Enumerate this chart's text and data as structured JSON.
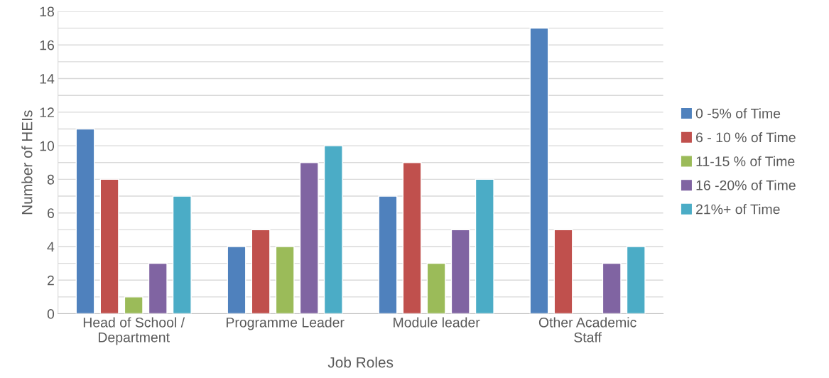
{
  "chart_data": {
    "type": "bar",
    "categories": [
      "Head of School /\nDepartment",
      "Programme Leader",
      "Module leader",
      "Other Academic\nStaff"
    ],
    "series": [
      {
        "name": "0 -5% of Time",
        "color": "#4f81bd",
        "values": [
          11,
          4,
          7,
          17
        ]
      },
      {
        "name": "6 - 10 % of Time",
        "color": "#c0504d",
        "values": [
          8,
          5,
          9,
          5
        ]
      },
      {
        "name": "11-15 % of Time",
        "color": "#9bbb59",
        "values": [
          1,
          4,
          3,
          null
        ]
      },
      {
        "name": "16 -20% of Time",
        "color": "#8064a2",
        "values": [
          3,
          9,
          5,
          3
        ]
      },
      {
        "name": "21%+ of Time",
        "color": "#4bacc6",
        "values": [
          7,
          10,
          8,
          4
        ]
      }
    ],
    "xlabel": "Job Roles",
    "ylabel": "Number of HEIs",
    "ylim": [
      0,
      18
    ],
    "yticks": [
      0,
      {
        "value": 1,
        "label": null
      },
      2,
      {
        "value": 3,
        "label": null
      },
      4,
      {
        "value": 5,
        "label": null
      },
      6,
      {
        "value": 7,
        "label": null
      },
      8,
      {
        "value": 9,
        "label": null
      },
      10,
      {
        "value": 11,
        "label": null
      },
      12,
      {
        "value": 13,
        "label": null
      },
      14,
      {
        "value": 15,
        "label": null
      },
      16,
      {
        "value": 17,
        "label": null
      },
      18
    ],
    "grid": "y",
    "legend": "right"
  }
}
